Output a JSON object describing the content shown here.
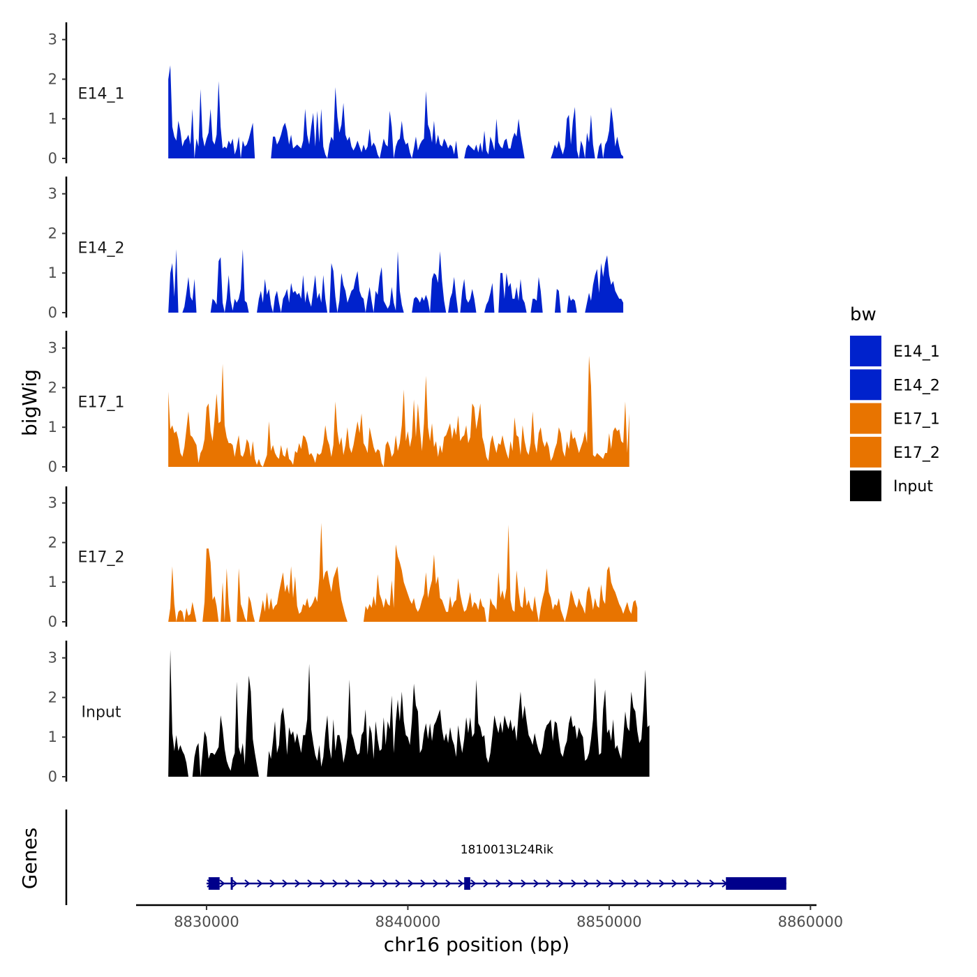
{
  "chart_data": {
    "type": "area",
    "title": "",
    "xlabel": "chr16 position (bp)",
    "ylabel": "bigWig",
    "genes_panel_label": "Genes",
    "xlim": [
      8826500,
      8860300
    ],
    "x_ticks": [
      8830000,
      8840000,
      8850000,
      8860000
    ],
    "x_tick_labels": [
      "8830000",
      "8840000",
      "8850000",
      "8860000"
    ],
    "ylim": [
      0,
      3.4
    ],
    "y_ticks": [
      0,
      1,
      2,
      3
    ],
    "y_tick_labels": [
      "0",
      "1",
      "2",
      "3"
    ],
    "x_start": 8828100,
    "x_step": 100,
    "legend": {
      "title": "bw",
      "position": "right",
      "entries": [
        {
          "label": "E14_1",
          "color": "#0022CC"
        },
        {
          "label": "E14_2",
          "color": "#0022CC"
        },
        {
          "label": "E17_1",
          "color": "#E87400"
        },
        {
          "label": "E17_2",
          "color": "#E87400"
        },
        {
          "label": "Input",
          "color": "#000000"
        }
      ]
    },
    "series": [
      {
        "name": "E14_1",
        "color": "#0022CC",
        "values": [
          2.0,
          2.35,
          0.8,
          0.55,
          0.45,
          0.95,
          0.7,
          0.3,
          0.45,
          0.5,
          0.6,
          0.35,
          1.25,
          0.0,
          0.5,
          0.3,
          1.75,
          0.55,
          0.3,
          0.5,
          0.65,
          1.25,
          0.45,
          0.35,
          0.6,
          1.95,
          0.8,
          0.25,
          0.3,
          0.25,
          0.45,
          0.35,
          0.5,
          0.1,
          0.25,
          0.55,
          0.0,
          0.45,
          0.3,
          0.35,
          0.5,
          0.7,
          0.9,
          0.0,
          0.0,
          0.0,
          0.0,
          0.0,
          0.0,
          0.0,
          0.0,
          0.0,
          0.55,
          0.55,
          0.35,
          0.45,
          0.6,
          0.8,
          0.9,
          0.7,
          0.35,
          0.6,
          0.25,
          0.3,
          0.35,
          0.3,
          0.25,
          0.45,
          1.25,
          0.6,
          0.35,
          0.8,
          1.15,
          0.3,
          1.2,
          0.4,
          1.25,
          0.3,
          0.1,
          0.0,
          0.35,
          0.55,
          0.45,
          1.8,
          1.05,
          0.65,
          0.85,
          1.4,
          0.6,
          0.45,
          0.55,
          0.3,
          0.2,
          0.3,
          0.45,
          0.3,
          0.15,
          0.35,
          0.2,
          0.3,
          0.75,
          0.3,
          0.4,
          0.3,
          0.1,
          0.0,
          0.25,
          0.5,
          0.35,
          0.3,
          1.2,
          0.8,
          0.0,
          0.3,
          0.45,
          0.5,
          0.95,
          0.5,
          0.35,
          0.4,
          0.15,
          0.0,
          0.25,
          0.55,
          0.2,
          0.35,
          0.45,
          0.5,
          1.7,
          0.85,
          0.7,
          0.4,
          0.95,
          0.35,
          0.6,
          0.35,
          0.3,
          0.5,
          0.4,
          0.25,
          0.35,
          0.3,
          0.1,
          0.45,
          0.0,
          0.0,
          0.0,
          0.0,
          0.25,
          0.35,
          0.3,
          0.25,
          0.2,
          0.35,
          0.15,
          0.4,
          0.15,
          0.7,
          0.2,
          0.1,
          0.55,
          0.4,
          0.2,
          1.0,
          0.4,
          0.3,
          0.25,
          0.45,
          0.5,
          0.25,
          0.25,
          0.5,
          0.65,
          0.55,
          1.0,
          0.6,
          0.3,
          0.0,
          0.0,
          0.0,
          0.0,
          0.0,
          0.0,
          0.0,
          0.0,
          0.0,
          0.0,
          0.0,
          0.0,
          0.0,
          0.0,
          0.15,
          0.35,
          0.25,
          0.45,
          0.25,
          0.1,
          0.3,
          1.0,
          1.1,
          0.35,
          0.95,
          1.3,
          0.2,
          0.0,
          0.45,
          0.3,
          0.0,
          0.65,
          0.4,
          1.1,
          0.35,
          0.0,
          0.0,
          0.3,
          0.4,
          0.0,
          0.35,
          0.45,
          0.7,
          1.3,
          0.9,
          0.3,
          0.55,
          0.3,
          0.1,
          0.05
        ]
      },
      {
        "name": "E14_2",
        "color": "#0022CC",
        "values": [
          0.0,
          1.0,
          1.25,
          0.4,
          1.6,
          0.0,
          0.0,
          0.0,
          0.15,
          0.5,
          0.9,
          0.4,
          0.3,
          0.85,
          0.0,
          0.0,
          0.0,
          0.0,
          0.0,
          0.0,
          0.0,
          0.0,
          0.35,
          0.3,
          0.2,
          1.3,
          1.4,
          0.25,
          0.0,
          0.35,
          0.95,
          0.3,
          0.05,
          0.35,
          0.25,
          0.35,
          0.6,
          1.6,
          0.3,
          0.25,
          0.0,
          0.0,
          0.0,
          0.0,
          0.0,
          0.35,
          0.55,
          0.25,
          0.85,
          0.45,
          0.6,
          0.2,
          0.0,
          0.4,
          0.55,
          0.25,
          0.0,
          0.35,
          0.45,
          0.6,
          0.25,
          0.75,
          0.5,
          0.55,
          0.45,
          0.5,
          0.35,
          0.95,
          0.25,
          0.55,
          0.3,
          0.15,
          0.55,
          0.95,
          0.35,
          0.5,
          0.25,
          0.95,
          0.35,
          0.0,
          0.0,
          1.25,
          1.05,
          0.4,
          0.0,
          0.3,
          1.0,
          0.7,
          0.55,
          0.25,
          0.4,
          0.55,
          0.6,
          0.85,
          1.05,
          0.55,
          0.4,
          0.35,
          0.0,
          0.35,
          0.65,
          0.3,
          0.0,
          0.55,
          0.45,
          0.9,
          1.15,
          0.3,
          0.2,
          0.1,
          0.2,
          0.65,
          0.25,
          0.05,
          1.55,
          0.55,
          0.2,
          0.0,
          0.0,
          0.0,
          0.0,
          0.0,
          0.35,
          0.4,
          0.35,
          0.25,
          0.4,
          0.3,
          0.45,
          0.3,
          0.0,
          0.85,
          1.0,
          0.95,
          0.75,
          1.55,
          0.8,
          0.3,
          0.0,
          0.0,
          0.35,
          0.5,
          0.9,
          0.4,
          0.0,
          0.0,
          0.55,
          0.85,
          0.35,
          0.25,
          0.35,
          0.6,
          0.35,
          0.0,
          0.0,
          0.0,
          0.0,
          0.0,
          0.2,
          0.3,
          0.5,
          0.75,
          0.0,
          0.0,
          0.0,
          1.0,
          1.0,
          0.35,
          1.0,
          0.65,
          0.75,
          0.35,
          0.35,
          0.65,
          0.3,
          0.85,
          0.35,
          0.25,
          0.0,
          0.0,
          0.0,
          0.35,
          0.35,
          0.3,
          0.9,
          0.55,
          0.0,
          0.0,
          0.0,
          0.0,
          0.0,
          0.0,
          0.0,
          0.6,
          0.55,
          0.0,
          0.0,
          0.0,
          0.0,
          0.45,
          0.3,
          0.35,
          0.3,
          0.0,
          0.0,
          0.0,
          0.0,
          0.0,
          0.25,
          0.5,
          0.3,
          0.7,
          0.95,
          1.1,
          0.5,
          1.25,
          0.9,
          1.25,
          1.45,
          0.95,
          0.7,
          0.8,
          0.55,
          0.45,
          0.35,
          0.35,
          0.25
        ]
      },
      {
        "name": "E17_1",
        "color": "#E87400",
        "values": [
          1.9,
          0.95,
          1.05,
          0.85,
          0.9,
          0.7,
          0.35,
          0.25,
          0.5,
          0.95,
          1.4,
          0.8,
          0.75,
          0.65,
          0.55,
          0.1,
          0.35,
          0.45,
          0.7,
          1.5,
          1.6,
          0.9,
          0.65,
          1.2,
          1.85,
          1.1,
          1.15,
          2.6,
          1.05,
          0.75,
          0.6,
          0.6,
          0.55,
          0.25,
          0.55,
          0.8,
          0.3,
          0.25,
          0.4,
          0.7,
          0.6,
          0.25,
          0.65,
          0.2,
          0.05,
          0.2,
          0.05,
          0.0,
          0.15,
          0.3,
          1.15,
          0.4,
          0.55,
          0.35,
          0.25,
          0.2,
          0.55,
          0.3,
          0.25,
          0.5,
          0.2,
          0.15,
          0.05,
          0.4,
          0.35,
          0.6,
          0.45,
          0.8,
          0.75,
          0.6,
          0.3,
          0.35,
          0.25,
          0.1,
          0.35,
          0.3,
          0.35,
          0.6,
          1.05,
          0.7,
          0.55,
          0.25,
          0.55,
          1.65,
          0.9,
          0.55,
          0.75,
          0.3,
          0.55,
          1.0,
          0.5,
          0.35,
          0.55,
          0.85,
          1.15,
          0.85,
          1.35,
          0.6,
          0.5,
          0.35,
          1.0,
          0.75,
          0.5,
          0.35,
          0.45,
          0.4,
          0.1,
          0.0,
          0.55,
          0.65,
          0.5,
          0.25,
          0.35,
          0.8,
          0.4,
          0.6,
          1.05,
          1.95,
          0.65,
          0.9,
          0.5,
          0.75,
          1.7,
          0.75,
          1.6,
          0.95,
          0.4,
          1.1,
          2.3,
          1.0,
          0.65,
          1.1,
          0.5,
          0.65,
          0.25,
          0.55,
          0.35,
          0.75,
          0.8,
          0.95,
          1.1,
          0.7,
          1.0,
          0.8,
          1.3,
          0.65,
          0.75,
          0.8,
          1.05,
          0.6,
          0.75,
          1.6,
          1.5,
          0.95,
          1.25,
          1.6,
          0.75,
          0.55,
          0.25,
          0.15,
          0.6,
          0.8,
          0.55,
          0.35,
          0.6,
          0.55,
          0.8,
          0.55,
          0.35,
          0.2,
          0.65,
          0.4,
          1.25,
          0.8,
          0.75,
          0.3,
          1.05,
          0.65,
          0.4,
          0.3,
          0.6,
          1.4,
          0.6,
          0.35,
          0.85,
          1.0,
          0.65,
          0.5,
          0.65,
          0.5,
          0.15,
          0.25,
          0.45,
          0.6,
          1.0,
          0.85,
          0.4,
          0.25,
          0.65,
          0.45,
          0.95,
          0.7,
          0.75,
          0.55,
          0.35,
          0.5,
          0.65,
          0.9,
          0.6,
          2.8,
          2.05,
          0.3,
          0.25,
          0.35,
          0.3,
          0.25,
          0.2,
          0.35,
          0.35,
          0.85,
          0.45,
          0.9,
          1.0,
          0.9,
          0.95,
          0.65,
          0.6,
          1.65,
          0.35,
          1.35
        ]
      },
      {
        "name": "E17_2",
        "color": "#E87400",
        "values": [
          0.0,
          0.35,
          1.4,
          0.45,
          0.0,
          0.25,
          0.3,
          0.25,
          0.0,
          0.35,
          0.15,
          0.2,
          0.5,
          0.25,
          0.0,
          0.0,
          0.0,
          0.0,
          0.5,
          1.85,
          1.85,
          1.5,
          0.55,
          0.65,
          0.4,
          0.0,
          0.0,
          1.0,
          0.0,
          1.35,
          0.45,
          0.0,
          0.0,
          0.0,
          0.0,
          1.35,
          0.45,
          0.3,
          0.1,
          0.0,
          0.65,
          0.5,
          0.2,
          0.0,
          0.0,
          0.0,
          0.25,
          0.55,
          0.25,
          0.75,
          0.3,
          0.6,
          0.3,
          0.4,
          0.45,
          0.75,
          1.0,
          1.25,
          0.75,
          0.95,
          0.7,
          1.4,
          0.6,
          1.15,
          0.4,
          0.2,
          0.25,
          0.45,
          0.4,
          0.6,
          0.35,
          0.4,
          0.5,
          0.65,
          0.5,
          1.1,
          2.5,
          1.05,
          1.25,
          1.3,
          1.0,
          0.75,
          1.1,
          1.25,
          1.4,
          0.9,
          0.55,
          0.35,
          0.15,
          0.0,
          0.0,
          0.0,
          0.0,
          0.0,
          0.0,
          0.0,
          0.0,
          0.0,
          0.4,
          0.3,
          0.45,
          0.35,
          0.65,
          0.4,
          1.2,
          0.7,
          0.55,
          0.35,
          0.6,
          0.45,
          0.4,
          1.05,
          0.35,
          1.95,
          1.65,
          1.5,
          1.3,
          1.0,
          0.85,
          0.7,
          0.55,
          0.45,
          0.6,
          0.35,
          0.25,
          0.35,
          0.55,
          0.7,
          1.25,
          0.6,
          0.85,
          1.05,
          1.7,
          0.95,
          1.15,
          0.6,
          0.55,
          0.4,
          0.25,
          0.25,
          0.65,
          0.35,
          0.5,
          0.55,
          1.1,
          0.7,
          0.45,
          0.25,
          0.3,
          0.5,
          0.75,
          0.35,
          0.5,
          0.45,
          0.3,
          0.6,
          0.4,
          0.35,
          0.0,
          0.0,
          0.6,
          0.45,
          0.4,
          0.3,
          1.25,
          0.6,
          0.8,
          0.55,
          0.85,
          2.45,
          0.55,
          0.3,
          0.25,
          1.3,
          0.75,
          0.4,
          0.35,
          0.9,
          0.4,
          0.55,
          0.35,
          0.25,
          0.65,
          0.3,
          0.0,
          0.35,
          0.6,
          0.8,
          1.35,
          0.75,
          0.6,
          0.3,
          0.45,
          0.4,
          0.6,
          0.3,
          0.15,
          0.0,
          0.2,
          0.45,
          0.8,
          0.65,
          0.45,
          0.35,
          0.6,
          0.45,
          0.35,
          0.2,
          0.75,
          0.9,
          0.65,
          0.3,
          0.6,
          0.4,
          0.35,
          0.95,
          0.55,
          0.45,
          1.3,
          1.4,
          1.0,
          0.85,
          0.75,
          0.6,
          0.45,
          0.35,
          0.2,
          0.35,
          0.5,
          0.3,
          0.2,
          0.5,
          0.55,
          0.35
        ]
      },
      {
        "name": "Input",
        "color": "#000000",
        "values": [
          0.0,
          3.2,
          1.1,
          0.65,
          1.05,
          0.65,
          0.8,
          0.65,
          0.55,
          0.35,
          0.0,
          0.0,
          0.0,
          0.5,
          0.75,
          0.85,
          0.0,
          0.6,
          1.15,
          1.0,
          0.45,
          0.6,
          0.6,
          0.55,
          0.65,
          0.75,
          1.55,
          1.2,
          0.7,
          0.4,
          0.25,
          0.15,
          0.45,
          0.6,
          2.4,
          0.75,
          0.55,
          0.85,
          0.3,
          1.5,
          2.55,
          2.15,
          0.95,
          0.6,
          0.3,
          0.0,
          0.0,
          0.0,
          0.0,
          0.0,
          0.65,
          0.45,
          0.9,
          1.4,
          0.6,
          0.8,
          1.55,
          1.75,
          1.3,
          0.55,
          1.25,
          1.05,
          1.15,
          0.85,
          1.1,
          0.85,
          0.6,
          1.05,
          1.05,
          1.45,
          2.85,
          1.2,
          0.85,
          0.55,
          0.4,
          0.8,
          0.25,
          0.5,
          1.1,
          1.55,
          0.75,
          0.45,
          1.45,
          0.65,
          1.05,
          1.05,
          0.8,
          0.35,
          0.6,
          1.0,
          2.45,
          1.1,
          0.95,
          0.7,
          0.55,
          0.6,
          1.05,
          1.15,
          1.7,
          0.55,
          1.3,
          1.1,
          0.45,
          1.4,
          0.95,
          0.65,
          0.7,
          1.5,
          0.8,
          1.4,
          1.2,
          2.05,
          0.6,
          1.4,
          1.95,
          1.4,
          2.15,
          1.4,
          1.05,
          1.0,
          0.8,
          1.4,
          2.35,
          1.8,
          1.65,
          0.6,
          0.7,
          1.1,
          1.35,
          0.95,
          1.35,
          0.9,
          1.3,
          1.4,
          1.55,
          1.7,
          1.2,
          0.9,
          1.1,
          0.85,
          1.25,
          0.95,
          0.8,
          0.5,
          1.3,
          0.9,
          0.6,
          0.95,
          1.5,
          1.1,
          1.5,
          1.0,
          1.1,
          2.45,
          1.35,
          1.25,
          1.0,
          1.05,
          0.5,
          0.35,
          0.6,
          1.05,
          1.55,
          1.3,
          1.1,
          1.4,
          1.1,
          1.55,
          1.35,
          1.2,
          1.45,
          1.15,
          1.3,
          0.9,
          1.6,
          2.15,
          1.45,
          1.8,
          1.4,
          1.05,
          0.95,
          0.8,
          1.1,
          0.85,
          0.65,
          0.55,
          0.75,
          1.15,
          1.3,
          1.35,
          1.45,
          0.9,
          1.4,
          1.35,
          0.95,
          0.6,
          0.5,
          0.75,
          0.9,
          1.35,
          1.55,
          1.25,
          1.3,
          0.95,
          1.25,
          1.1,
          1.0,
          0.4,
          0.45,
          0.6,
          0.95,
          1.45,
          2.5,
          1.3,
          0.55,
          0.6,
          1.7,
          2.2,
          1.1,
          1.2,
          0.9,
          1.45,
          0.7,
          0.8,
          0.6,
          0.45,
          1.0,
          1.65,
          1.25,
          1.15,
          2.15,
          1.75,
          1.65,
          1.15,
          0.85,
          0.95,
          1.7,
          2.7,
          1.25,
          1.3
        ]
      }
    ],
    "genes": [
      {
        "name": "1810013L24Rik",
        "strand": "+",
        "color": "#00008B",
        "start": 8830000,
        "end": 8858800,
        "exons": [
          [
            8830100,
            8830650
          ],
          [
            8831200,
            8831300
          ],
          [
            8842800,
            8843100
          ],
          [
            8855800,
            8858800
          ]
        ]
      }
    ]
  }
}
